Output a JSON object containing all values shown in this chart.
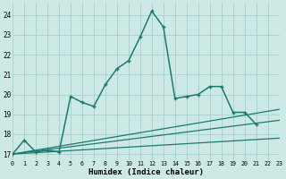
{
  "xlabel": "Humidex (Indice chaleur)",
  "xlim": [
    0,
    23
  ],
  "ylim": [
    16.7,
    24.6
  ],
  "yticks": [
    17,
    18,
    19,
    20,
    21,
    22,
    23,
    24
  ],
  "xticks": [
    0,
    1,
    2,
    3,
    4,
    5,
    6,
    7,
    8,
    9,
    10,
    11,
    12,
    13,
    14,
    15,
    16,
    17,
    18,
    19,
    20,
    21,
    22,
    23
  ],
  "bg_color": "#cce9e6",
  "grid_color": "#aad4d0",
  "line_color": "#1a7a6e",
  "main_curve_x": [
    0,
    1,
    2,
    3,
    4,
    5,
    6,
    7,
    8,
    9,
    10,
    11,
    12,
    13,
    14,
    15,
    16,
    17,
    18,
    19,
    20,
    21
  ],
  "main_curve_y": [
    17.0,
    17.7,
    17.1,
    17.2,
    17.1,
    19.9,
    19.6,
    19.4,
    20.5,
    21.3,
    21.7,
    22.9,
    24.2,
    23.4,
    19.8,
    19.9,
    20.0,
    20.4,
    20.4,
    19.1,
    19.1,
    18.5
  ],
  "straight_lines": [
    {
      "x": [
        0,
        23
      ],
      "y": [
        17.0,
        17.8
      ]
    },
    {
      "x": [
        0,
        23
      ],
      "y": [
        17.0,
        18.7
      ]
    },
    {
      "x": [
        0,
        23
      ],
      "y": [
        17.0,
        19.25
      ]
    }
  ]
}
